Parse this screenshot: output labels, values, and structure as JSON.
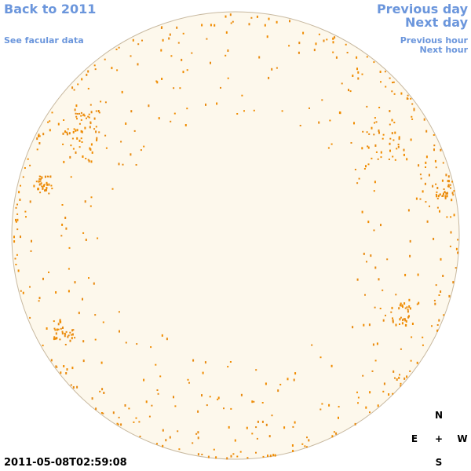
{
  "links": {
    "back": "Back to 2011",
    "facular": "See facular data",
    "previous_day": "Previous day",
    "next_day": "Next day",
    "previous_hour": "Previous hour",
    "next_hour": "Next hour"
  },
  "timestamp": "2011-05-08T02:59:08",
  "compass": {
    "north": "N",
    "east": "E",
    "center": "+",
    "west": "W",
    "south": "S"
  }
}
